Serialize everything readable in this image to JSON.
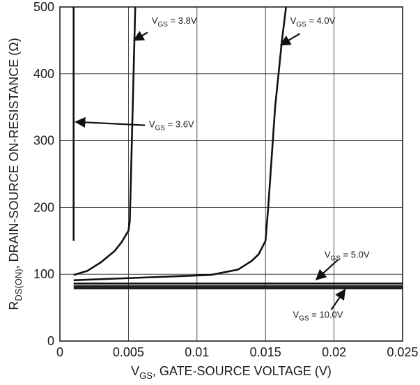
{
  "chart_data": {
    "type": "line",
    "title": "",
    "xlabel": {
      "main": "V",
      "sub": "GS",
      "rest": ", GATE-SOURCE VOLTAGE (V)"
    },
    "ylabel": {
      "main": "R",
      "sub": "DS(ON)",
      "rest": ", DRAIN-SOURCE ON-RESISTANCE (Ω)"
    },
    "xlim": [
      0,
      0.025
    ],
    "ylim": [
      0,
      500
    ],
    "x_ticks": [
      "0",
      "0.005",
      "0.01",
      "0.015",
      "0.02",
      "0.025"
    ],
    "y_ticks": [
      "0",
      "100",
      "200",
      "300",
      "400",
      "500"
    ],
    "grid": true,
    "series": [
      {
        "name": "VGS = 3.6V",
        "x": [
          0.001,
          0.001
        ],
        "y": [
          150,
          500
        ]
      },
      {
        "name": "VGS = 3.8V",
        "x": [
          0.001,
          0.002,
          0.003,
          0.004,
          0.0045,
          0.005,
          0.0051,
          0.0053,
          0.0055
        ],
        "y": [
          99,
          105,
          118,
          135,
          148,
          165,
          180,
          340,
          500
        ]
      },
      {
        "name": "VGS = 4.0V",
        "x": [
          0.001,
          0.006,
          0.011,
          0.013,
          0.014,
          0.0145,
          0.015,
          0.0152,
          0.0157,
          0.0162,
          0.0165
        ],
        "y": [
          91,
          95,
          99,
          107,
          120,
          130,
          150,
          200,
          350,
          450,
          500
        ]
      },
      {
        "name": "VGS = 5.0V",
        "x": [
          0.001,
          0.025
        ],
        "y": [
          86,
          86
        ]
      },
      {
        "name": "VGS = 10.0V",
        "x": [
          0.001,
          0.025
        ],
        "y": [
          82,
          82
        ]
      },
      {
        "name": "",
        "x": [
          0.001,
          0.025
        ],
        "y": [
          79,
          79
        ]
      }
    ],
    "annotations": [
      {
        "label_main": "V",
        "label_sub": "GS",
        "label_rest": " = 3.6V",
        "text_at": [
          0.0065,
          320
        ],
        "arrow_from": [
          0.0062,
          323
        ],
        "arrow_to": [
          0.00115,
          328
        ]
      },
      {
        "label_main": "V",
        "label_sub": "GS",
        "label_rest": " = 3.8V",
        "text_at": [
          0.0067,
          475
        ],
        "arrow_from": [
          0.0064,
          462
        ],
        "arrow_to": [
          0.0054,
          450
        ]
      },
      {
        "label_main": "V",
        "label_sub": "GS",
        "label_rest": " = 4.0V",
        "text_at": [
          0.0168,
          475
        ],
        "arrow_from": [
          0.0175,
          460
        ],
        "arrow_to": [
          0.0161,
          443
        ]
      },
      {
        "label_main": "V",
        "label_sub": "GS",
        "label_rest": " = 5.0V",
        "text_at": [
          0.0193,
          125
        ],
        "arrow_from": [
          0.0203,
          122
        ],
        "arrow_to": [
          0.0187,
          92
        ]
      },
      {
        "label_main": "V",
        "label_sub": "GS",
        "label_rest": " = 10.0V",
        "text_at": [
          0.017,
          35
        ],
        "arrow_from": [
          0.0198,
          47
        ],
        "arrow_to": [
          0.0208,
          77
        ]
      }
    ]
  }
}
